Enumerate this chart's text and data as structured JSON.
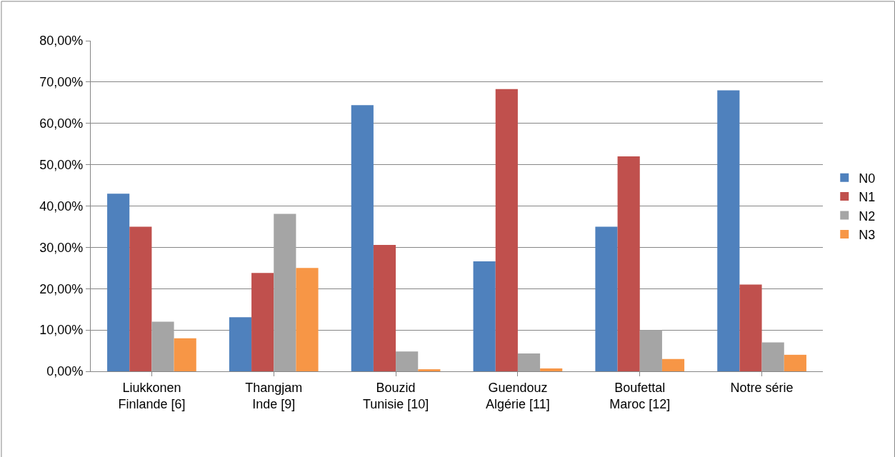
{
  "chart_data": {
    "type": "bar",
    "categories": [
      "Liukkonen\nFinlande [6]",
      "Thangjam\nInde [9]",
      "Bouzid\nTunisie [10]",
      "Guendouz\nAlgérie [11]",
      "Boufettal\nMaroc [12]",
      "Notre série"
    ],
    "series": [
      {
        "name": "N0",
        "color": "#4f81bd",
        "values": [
          43.0,
          13.1,
          64.4,
          26.6,
          35.0,
          68.0
        ]
      },
      {
        "name": "N1",
        "color": "#c0504d",
        "values": [
          35.0,
          23.8,
          30.6,
          68.3,
          52.0,
          21.0
        ]
      },
      {
        "name": "N2",
        "color": "#a5a5a5",
        "values": [
          12.0,
          38.1,
          4.8,
          4.3,
          10.0,
          7.0
        ]
      },
      {
        "name": "N3",
        "color": "#f79646",
        "values": [
          8.0,
          25.0,
          0.5,
          0.7,
          3.0,
          4.0
        ]
      }
    ],
    "ylim": [
      0,
      80
    ],
    "yticks": [
      {
        "value": 0,
        "label": "0,00%"
      },
      {
        "value": 10,
        "label": "10,00%"
      },
      {
        "value": 20,
        "label": "20,00%"
      },
      {
        "value": 30,
        "label": "30,00%"
      },
      {
        "value": 40,
        "label": "40,00%"
      },
      {
        "value": 50,
        "label": "50,00%"
      },
      {
        "value": 60,
        "label": "60,00%"
      },
      {
        "value": 70,
        "label": "70,00%"
      },
      {
        "value": 80,
        "label": "80,00%"
      }
    ],
    "grid": "y",
    "legend": "right"
  }
}
